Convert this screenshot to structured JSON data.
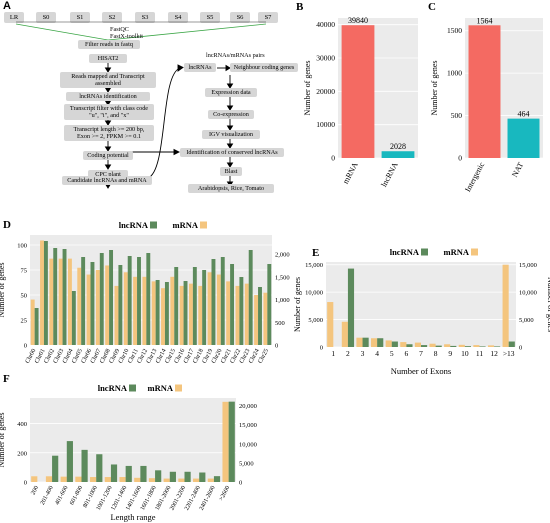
{
  "panels": {
    "a": "A",
    "b": "B",
    "c": "C",
    "d": "D",
    "e": "E",
    "f": "F"
  },
  "colors": {
    "lncRNA": "#5c8a5c",
    "mRNA": "#f4c57e",
    "bar_red": "#f46a62",
    "bar_teal": "#18b8bf"
  },
  "flow": {
    "lanes": [
      "LR",
      "S0",
      "S1",
      "S2",
      "S3",
      "S4",
      "S5",
      "S6",
      "S7"
    ],
    "fastqc": "FastQC",
    "fastx": "FastX-toolkit",
    "steps": [
      "Filter reads in fastq",
      "HISAT2",
      "Reads mapped and Transcript assembled",
      "lncRNAs identification",
      "Transcript filter with class code \"u\", \"i\", and \"x\"",
      "Transcript length >= 200 bp, Exon >= 2, FPKM >= 0.1",
      "Coding potential",
      "CPC plant",
      "Candidate lncRNAs and mRNA"
    ],
    "pairs_title": "lncRNAs/mRNAs pairs",
    "right": [
      "lncRNAs",
      "Neighbour coding genes",
      "Expression data",
      "Co-expression",
      "IGV visualization",
      "Identification of conserved lncRNAs",
      "Blast",
      "Arabidopsis, Rice, Tomato"
    ]
  },
  "chart_data": [
    {
      "id": "B",
      "type": "bar",
      "categories": [
        "mRNA",
        "lncRNA"
      ],
      "values": [
        39840,
        2028
      ],
      "data_labels": [
        "39840",
        "2028"
      ],
      "ylabel": "Number of genes",
      "ylim": [
        0,
        42000
      ],
      "yticks": [
        0,
        10000,
        20000,
        30000,
        40000
      ],
      "colors": [
        "#f46a62",
        "#18b8bf"
      ]
    },
    {
      "id": "C",
      "type": "bar",
      "categories": [
        "Intergenic",
        "NAT"
      ],
      "values": [
        1564,
        464
      ],
      "data_labels": [
        "1564",
        "464"
      ],
      "ylabel": "Number of genes",
      "ylim": [
        0,
        1650
      ],
      "yticks": [
        0,
        500,
        1000,
        1500
      ],
      "colors": [
        "#f46a62",
        "#18b8bf"
      ]
    },
    {
      "id": "D",
      "type": "bar",
      "categories": [
        "Chr00",
        "Chr01",
        "Chr02",
        "Chr03",
        "Chr04",
        "Chr05",
        "Chr06",
        "Chr07",
        "Chr08",
        "Chr09",
        "Chr10",
        "Chr11",
        "Chr12",
        "Chr13",
        "Chr14",
        "Chr15",
        "Chr16",
        "Chr17",
        "Chr18",
        "Chr19",
        "Chr20",
        "Chr21",
        "Chr22",
        "Chr23",
        "Chr24",
        "Chr25"
      ],
      "series": [
        {
          "name": "lncRNA",
          "axis": "left",
          "values": [
            37,
            104,
            97,
            96,
            54,
            88,
            83,
            92,
            95,
            80,
            89,
            88,
            92,
            65,
            63,
            78,
            64,
            78,
            75,
            86,
            88,
            81,
            68,
            95,
            58,
            81
          ]
        },
        {
          "name": "mRNA",
          "axis": "right",
          "values": [
            1000,
            2300,
            1900,
            1900,
            1900,
            1700,
            1550,
            1650,
            1750,
            1300,
            1600,
            1500,
            1500,
            1400,
            1250,
            1500,
            1300,
            1350,
            1300,
            1600,
            1550,
            1400,
            1300,
            1350,
            1100,
            1150
          ]
        }
      ],
      "ylabel": "Number of genes",
      "ylim_left": [
        0,
        110
      ],
      "yticks_left": [
        0,
        25,
        50,
        75,
        100
      ],
      "ylim_right": [
        0,
        2420
      ],
      "yticks_right": [
        0,
        500,
        1000,
        1500,
        2000
      ],
      "yticklabels_right": [
        "0",
        "500",
        "1,000",
        "1,500",
        "2,000"
      ],
      "legend": "top"
    },
    {
      "id": "E",
      "type": "bar",
      "categories": [
        "1",
        "2",
        "3",
        "4",
        "5",
        "6",
        "7",
        "8",
        "9",
        "10",
        "11",
        "12",
        ">13"
      ],
      "series": [
        {
          "name": "lncRNA",
          "axis": "left",
          "values": [
            0,
            14300,
            1700,
            1600,
            1000,
            500,
            350,
            250,
            200,
            150,
            100,
            100,
            1000
          ]
        },
        {
          "name": "mRNA",
          "axis": "right",
          "values": [
            8200,
            4600,
            1700,
            1600,
            1200,
            900,
            800,
            600,
            500,
            400,
            350,
            300,
            15000
          ]
        }
      ],
      "ylabel_left": "Number of genes",
      "ylabel_right": "Number of genes",
      "xlabel": "Number of Exons",
      "ylim_left": [
        0,
        15500
      ],
      "yticks_left": [
        0,
        5000,
        10000,
        15000
      ],
      "yticklabels_left": [
        "0",
        "5,000",
        "10,000",
        "15,000"
      ],
      "ylim_right": [
        0,
        15500
      ],
      "yticks_right": [
        0,
        5000,
        10000,
        15000
      ],
      "yticklabels_right": [
        "0",
        "5,000",
        "10,000",
        "15,000"
      ],
      "legend": "top"
    },
    {
      "id": "F",
      "type": "bar",
      "categories": [
        "200",
        "201-400",
        "401-600",
        "601-800",
        "801-1000",
        "1001-1200",
        "1201-1400",
        "1401-1600",
        "1601-1800",
        "1801-2000",
        "2001-2200",
        "2201-2400",
        "2401-2600",
        ">2600"
      ],
      "series": [
        {
          "name": "lncRNA",
          "axis": "left",
          "values": [
            0,
            180,
            280,
            220,
            190,
            120,
            110,
            110,
            80,
            70,
            70,
            65,
            40,
            550
          ]
        },
        {
          "name": "mRNA",
          "axis": "right",
          "values": [
            1500,
            1500,
            1400,
            1400,
            1300,
            1300,
            1300,
            1100,
            1000,
            900,
            900,
            900,
            900,
            21000
          ]
        }
      ],
      "ylabel": "Number of genes",
      "xlabel": "Length range",
      "ylim_left": [
        0,
        575
      ],
      "yticks_left": [
        0,
        200,
        400
      ],
      "ylim_right": [
        0,
        22000
      ],
      "yticks_right": [
        0,
        5000,
        10000,
        15000,
        20000
      ],
      "yticklabels_right": [
        "0",
        "5,000",
        "10,000",
        "15,000",
        "20,000"
      ],
      "legend": "top"
    }
  ]
}
